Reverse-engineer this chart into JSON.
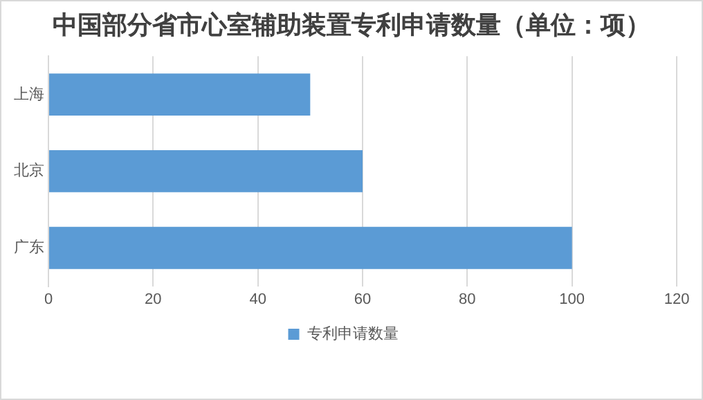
{
  "chart_data": {
    "type": "bar",
    "orientation": "horizontal",
    "title": "中国部分省市心室辅助装置专利申请数量（单位：项）",
    "categories": [
      "上海",
      "北京",
      "广东"
    ],
    "series": [
      {
        "name": "专利申请数量",
        "color": "#5b9bd5",
        "values": [
          50,
          60,
          100
        ]
      }
    ],
    "xlim": [
      0,
      120
    ],
    "xticks": [
      0,
      20,
      40,
      60,
      80,
      100,
      120
    ],
    "grid": "x",
    "legend": "bottom"
  }
}
